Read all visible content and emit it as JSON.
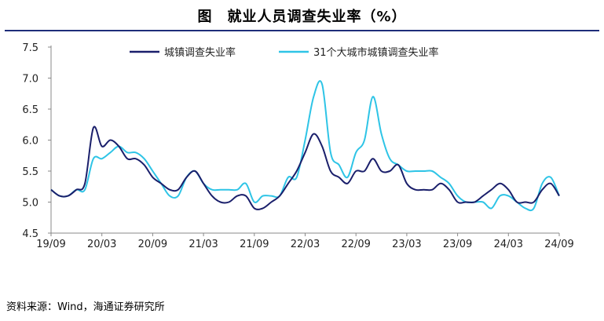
{
  "chart_data": {
    "type": "line",
    "title": "图　就业人员调查失业率（%）",
    "source": "资料来源：Wind，海通证券研究所",
    "x": [
      "19/09",
      "19/10",
      "19/11",
      "19/12",
      "20/01",
      "20/02",
      "20/03",
      "20/04",
      "20/05",
      "20/06",
      "20/07",
      "20/08",
      "20/09",
      "20/10",
      "20/11",
      "20/12",
      "21/01",
      "21/02",
      "21/03",
      "21/04",
      "21/05",
      "21/06",
      "21/07",
      "21/08",
      "21/09",
      "21/10",
      "21/11",
      "21/12",
      "22/01",
      "22/02",
      "22/03",
      "22/04",
      "22/05",
      "22/06",
      "22/07",
      "22/08",
      "22/09",
      "22/10",
      "22/11",
      "22/12",
      "23/01",
      "23/02",
      "23/03",
      "23/04",
      "23/05",
      "23/06",
      "23/07",
      "23/08",
      "23/09",
      "23/10",
      "23/11",
      "23/12",
      "24/01",
      "24/02",
      "24/03",
      "24/04",
      "24/05",
      "24/06",
      "24/07",
      "24/08",
      "24/09"
    ],
    "xticks": [
      "19/09",
      "20/03",
      "20/09",
      "21/03",
      "21/09",
      "22/03",
      "22/09",
      "23/03",
      "23/09",
      "24/03",
      "24/09"
    ],
    "ylim": [
      4.5,
      7.5
    ],
    "yticks": [
      "4.5",
      "5.0",
      "5.5",
      "6.0",
      "6.5",
      "7.0",
      "7.5"
    ],
    "legend": "top",
    "series": [
      {
        "name": "城镇调查失业率",
        "color": "#1a1f6b",
        "values": [
          5.2,
          5.1,
          5.1,
          5.2,
          5.3,
          6.2,
          5.9,
          6.0,
          5.9,
          5.7,
          5.7,
          5.6,
          5.4,
          5.3,
          5.2,
          5.2,
          5.4,
          5.5,
          5.3,
          5.1,
          5.0,
          5.0,
          5.1,
          5.1,
          4.9,
          4.9,
          5.0,
          5.1,
          5.3,
          5.5,
          5.8,
          6.1,
          5.9,
          5.5,
          5.4,
          5.3,
          5.5,
          5.5,
          5.7,
          5.5,
          5.5,
          5.6,
          5.3,
          5.2,
          5.2,
          5.2,
          5.3,
          5.2,
          5.0,
          5.0,
          5.0,
          5.1,
          5.2,
          5.3,
          5.2,
          5.0,
          5.0,
          5.0,
          5.2,
          5.3,
          5.1
        ]
      },
      {
        "name": "31个大城市城镇调查失业率",
        "color": "#2ec4e6",
        "values": [
          5.2,
          5.1,
          5.1,
          5.2,
          5.2,
          5.7,
          5.7,
          5.8,
          5.9,
          5.8,
          5.8,
          5.7,
          5.5,
          5.3,
          5.1,
          5.1,
          5.4,
          5.5,
          5.3,
          5.2,
          5.2,
          5.2,
          5.2,
          5.3,
          5.0,
          5.1,
          5.1,
          5.1,
          5.4,
          5.4,
          6.0,
          6.7,
          6.9,
          5.8,
          5.6,
          5.4,
          5.8,
          6.0,
          6.7,
          6.1,
          5.7,
          5.6,
          5.5,
          5.5,
          5.5,
          5.5,
          5.4,
          5.3,
          5.1,
          5.0,
          5.0,
          5.0,
          4.9,
          5.1,
          5.1,
          5.0,
          4.9,
          4.9,
          5.3,
          5.4,
          5.1
        ]
      }
    ]
  }
}
